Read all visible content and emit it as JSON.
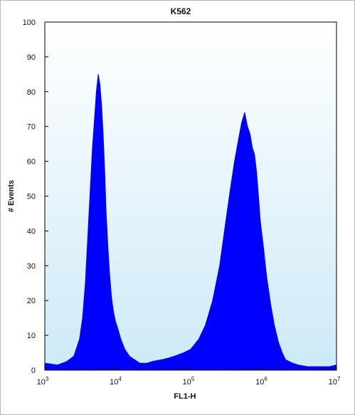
{
  "chart_data": {
    "type": "area",
    "title": "K562",
    "xlabel": "FL1-H",
    "ylabel": "# Events",
    "x_scale": "log",
    "xlim": [
      1000,
      10000000
    ],
    "ylim": [
      0,
      100
    ],
    "x_ticks": [
      1000,
      10000,
      100000,
      1000000,
      10000000
    ],
    "x_tick_labels": [
      {
        "base": "10",
        "exp": "3"
      },
      {
        "base": "10",
        "exp": "4"
      },
      {
        "base": "10",
        "exp": "5"
      },
      {
        "base": "10",
        "exp": "6"
      },
      {
        "base": "10",
        "exp": "7"
      }
    ],
    "y_ticks": [
      0,
      10,
      20,
      30,
      40,
      50,
      60,
      70,
      80,
      90,
      100
    ],
    "grid": false,
    "plot_background": "gradient",
    "colors": {
      "fill": "#0000ff",
      "bg_top": "#ffffff",
      "bg_bottom": "#cdeaf7",
      "frame": "#000000"
    },
    "series": [
      {
        "x": [
          1000,
          1500,
          2000,
          2500,
          3000,
          3300,
          3600,
          3900,
          4200,
          4500,
          4800,
          5100,
          5400,
          5700,
          6000,
          6300,
          6600,
          6900,
          7300,
          7700,
          8200,
          8700,
          9300,
          10000,
          11000,
          12500,
          14500,
          17000,
          20000,
          25000,
          30000,
          40000,
          50000,
          60000,
          80000,
          100000,
          130000,
          160000,
          200000,
          250000,
          300000,
          350000,
          400000,
          450000,
          500000,
          550000,
          600000,
          650000,
          700000,
          750000,
          800000,
          850000,
          900000,
          1000000,
          1100000,
          1250000,
          1400000,
          1600000,
          1800000,
          2000000,
          2500000,
          3000000,
          4000000,
          6000000,
          8000000,
          10000000
        ],
        "y": [
          2,
          1.5,
          2.5,
          4,
          9,
          15,
          25,
          39,
          52,
          64,
          72,
          80,
          85,
          82,
          76,
          68,
          58,
          46,
          36,
          28,
          21,
          17,
          14,
          12,
          9,
          6,
          4,
          3,
          2,
          2,
          2.5,
          3,
          3.5,
          4,
          5,
          6,
          9,
          13,
          20,
          30,
          42,
          52,
          60,
          66,
          71,
          74,
          70,
          68,
          64,
          62,
          57,
          50,
          43,
          35,
          27,
          19,
          13,
          8,
          5,
          3,
          2,
          1.5,
          1,
          1,
          1,
          1.5
        ]
      }
    ]
  }
}
